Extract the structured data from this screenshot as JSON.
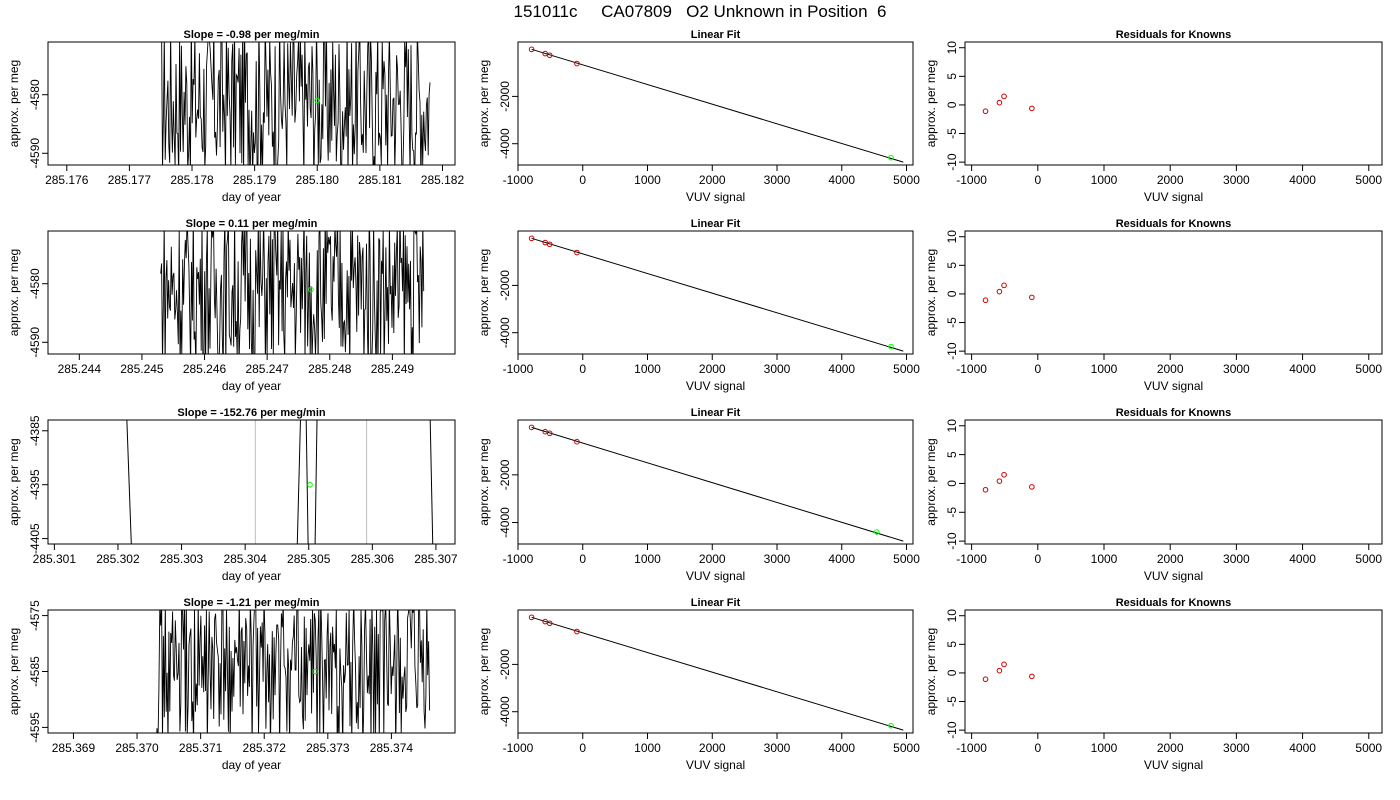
{
  "main_title": "151011c     CA07809   O2 Unknown in Position  6",
  "colors": {
    "trace": "#000000",
    "unknown_point": "#00ff00",
    "known_point": "#cc0000",
    "vline": "#bebebe",
    "fit_line": "#000000"
  },
  "chart_data": [
    {
      "type": "line",
      "title": "Slope =  -0.98  per meg/min",
      "xlabel": "day of year",
      "ylabel": "approx. per meg",
      "xlim": [
        285.1757,
        285.1822
      ],
      "ylim": [
        -4592,
        -4571
      ],
      "xticks": [
        285.176,
        285.177,
        285.178,
        285.179,
        285.18,
        285.181,
        285.182
      ],
      "xtick_labels": [
        "285.176",
        "285.177",
        "285.178",
        "285.179",
        "285.180",
        "285.181",
        "285.182"
      ],
      "yticks": [
        -4580,
        -4590
      ],
      "ytick_labels": [
        "-4580",
        "-4590"
      ],
      "trace": {
        "x_start": 285.1775,
        "x_end": 285.1818,
        "center": -4581,
        "amp": 14,
        "n": 300
      },
      "unknown_point": {
        "x": 285.18,
        "y": -4581
      }
    },
    {
      "type": "scatter",
      "title": "Linear Fit",
      "xlabel": "VUV signal",
      "ylabel": "approx. per meg",
      "xlim": [
        -1000,
        5100
      ],
      "ylim": [
        -4900,
        300
      ],
      "xticks": [
        -1000,
        0,
        1000,
        2000,
        3000,
        4000,
        5000
      ],
      "xtick_labels": [
        "-1000",
        "0",
        "1000",
        "2000",
        "3000",
        "4000",
        "5000"
      ],
      "yticks": [
        -2000,
        -4000
      ],
      "ytick_labels": [
        "-2000",
        "-4000"
      ],
      "known_points": [
        {
          "x": -790,
          "y": -10
        },
        {
          "x": -580,
          "y": -190
        },
        {
          "x": -510,
          "y": -260
        },
        {
          "x": -90,
          "y": -610
        }
      ],
      "unknown_point": {
        "x": 4760,
        "y": -4590
      },
      "fit_line": {
        "x": [
          -790,
          4950
        ],
        "y": [
          -10,
          -4780
        ]
      }
    },
    {
      "type": "scatter",
      "title": "Residuals for Knowns",
      "xlabel": "VUV signal",
      "ylabel": "approx. per meg",
      "xlim": [
        -1100,
        5200
      ],
      "ylim": [
        -10.5,
        11
      ],
      "xticks": [
        -1000,
        0,
        1000,
        2000,
        3000,
        4000,
        5000
      ],
      "xtick_labels": [
        "-1000",
        "0",
        "1000",
        "2000",
        "3000",
        "4000",
        "5000"
      ],
      "yticks": [
        10,
        5,
        0,
        -5,
        -10
      ],
      "ytick_labels": [
        "10",
        "5",
        "0",
        "-5",
        "-10"
      ],
      "known_points": [
        {
          "x": -790,
          "y": -1.1
        },
        {
          "x": -580,
          "y": 0.4
        },
        {
          "x": -510,
          "y": 1.5
        },
        {
          "x": -90,
          "y": -0.6
        }
      ]
    },
    {
      "type": "line",
      "title": "Slope =  0.11  per meg/min",
      "xlabel": "day of year",
      "ylabel": "approx. per meg",
      "xlim": [
        285.2435,
        285.25
      ],
      "ylim": [
        -4592,
        -4571
      ],
      "xticks": [
        285.244,
        285.245,
        285.246,
        285.247,
        285.248,
        285.249
      ],
      "xtick_labels": [
        "285.244",
        "285.245",
        "285.246",
        "285.247",
        "285.248",
        "285.249"
      ],
      "yticks": [
        -4580,
        -4590
      ],
      "ytick_labels": [
        "-4580",
        "-4590"
      ],
      "trace": {
        "x_start": 285.2453,
        "x_end": 285.2495,
        "center": -4581,
        "amp": 14,
        "n": 300
      },
      "unknown_point": {
        "x": 285.2477,
        "y": -4581
      }
    },
    {
      "type": "scatter",
      "title": "Linear Fit",
      "xlabel": "VUV signal",
      "ylabel": "approx. per meg",
      "xlim": [
        -1000,
        5100
      ],
      "ylim": [
        -4900,
        300
      ],
      "xticks": [
        -1000,
        0,
        1000,
        2000,
        3000,
        4000,
        5000
      ],
      "xtick_labels": [
        "-1000",
        "0",
        "1000",
        "2000",
        "3000",
        "4000",
        "5000"
      ],
      "yticks": [
        -2000,
        -4000
      ],
      "ytick_labels": [
        "-2000",
        "-4000"
      ],
      "known_points": [
        {
          "x": -790,
          "y": -10
        },
        {
          "x": -580,
          "y": -190
        },
        {
          "x": -510,
          "y": -260
        },
        {
          "x": -90,
          "y": -610
        }
      ],
      "unknown_point": {
        "x": 4760,
        "y": -4590
      },
      "fit_line": {
        "x": [
          -790,
          4950
        ],
        "y": [
          -10,
          -4780
        ]
      }
    },
    {
      "type": "scatter",
      "title": "Residuals for Knowns",
      "xlabel": "VUV signal",
      "ylabel": "approx. per meg",
      "xlim": [
        -1100,
        5200
      ],
      "ylim": [
        -10.5,
        11
      ],
      "xticks": [
        -1000,
        0,
        1000,
        2000,
        3000,
        4000,
        5000
      ],
      "xtick_labels": [
        "-1000",
        "0",
        "1000",
        "2000",
        "3000",
        "4000",
        "5000"
      ],
      "yticks": [
        10,
        5,
        0,
        -5,
        -10
      ],
      "ytick_labels": [
        "10",
        "5",
        "0",
        "-5",
        "-10"
      ],
      "known_points": [
        {
          "x": -790,
          "y": -1.1
        },
        {
          "x": -580,
          "y": 0.4
        },
        {
          "x": -510,
          "y": 1.5
        },
        {
          "x": -90,
          "y": -0.6
        }
      ]
    },
    {
      "type": "line",
      "title": "Slope =  -152.76  per meg/min",
      "xlabel": "day of year",
      "ylabel": "approx. per meg",
      "xlim": [
        285.3009,
        285.3073
      ],
      "ylim": [
        -4406,
        -4383
      ],
      "xticks": [
        285.301,
        285.302,
        285.303,
        285.304,
        285.305,
        285.306,
        285.307
      ],
      "xtick_labels": [
        "285.301",
        "285.302",
        "285.303",
        "285.304",
        "285.305",
        "285.306",
        "285.307"
      ],
      "yticks": [
        -4385,
        -4395,
        -4405
      ],
      "ytick_labels": [
        "-4385",
        "-4395",
        "-4405"
      ],
      "gray_vlines": [
        285.30416,
        285.30591
      ],
      "segments": [
        {
          "x": [
            285.30214,
            285.30221
          ],
          "y": [
            -4383,
            -4406
          ]
        },
        {
          "x": [
            285.30482,
            285.30487
          ],
          "y": [
            -4406,
            -4383
          ]
        },
        {
          "x": [
            285.30496,
            285.30499
          ],
          "y": [
            -4383,
            -4406
          ]
        },
        {
          "x": [
            285.3051,
            285.30513
          ],
          "y": [
            -4406,
            -4383
          ]
        },
        {
          "x": [
            285.30691,
            285.30695
          ],
          "y": [
            -4383,
            -4406
          ]
        }
      ],
      "unknown_point": {
        "x": 285.30502,
        "y": -4395
      }
    },
    {
      "type": "scatter",
      "title": "Linear Fit",
      "xlabel": "VUV signal",
      "ylabel": "approx. per meg",
      "xlim": [
        -1000,
        5100
      ],
      "ylim": [
        -4900,
        300
      ],
      "xticks": [
        -1000,
        0,
        1000,
        2000,
        3000,
        4000,
        5000
      ],
      "xtick_labels": [
        "-1000",
        "0",
        "1000",
        "2000",
        "3000",
        "4000",
        "5000"
      ],
      "yticks": [
        -2000,
        -4000
      ],
      "ytick_labels": [
        "-2000",
        "-4000"
      ],
      "known_points": [
        {
          "x": -790,
          "y": -10
        },
        {
          "x": -580,
          "y": -190
        },
        {
          "x": -510,
          "y": -260
        },
        {
          "x": -90,
          "y": -610
        }
      ],
      "unknown_point": {
        "x": 4540,
        "y": -4400
      },
      "fit_line": {
        "x": [
          -790,
          4950
        ],
        "y": [
          -10,
          -4780
        ]
      }
    },
    {
      "type": "scatter",
      "title": "Residuals for Knowns",
      "xlabel": "VUV signal",
      "ylabel": "approx. per meg",
      "xlim": [
        -1100,
        5200
      ],
      "ylim": [
        -10.5,
        11
      ],
      "xticks": [
        -1000,
        0,
        1000,
        2000,
        3000,
        4000,
        5000
      ],
      "xtick_labels": [
        "-1000",
        "0",
        "1000",
        "2000",
        "3000",
        "4000",
        "5000"
      ],
      "yticks": [
        10,
        5,
        0,
        -5,
        -10
      ],
      "ytick_labels": [
        "10",
        "5",
        "0",
        "-5",
        "-10"
      ],
      "known_points": [
        {
          "x": -790,
          "y": -1.1
        },
        {
          "x": -580,
          "y": 0.4
        },
        {
          "x": -510,
          "y": 1.5
        },
        {
          "x": -90,
          "y": -0.6
        }
      ]
    },
    {
      "type": "line",
      "title": "Slope =  -1.21  per meg/min",
      "xlabel": "day of year",
      "ylabel": "approx. per meg",
      "xlim": [
        285.3686,
        285.375
      ],
      "ylim": [
        -4596,
        -4574
      ],
      "xticks": [
        285.369,
        285.37,
        285.371,
        285.372,
        285.373,
        285.374
      ],
      "xtick_labels": [
        "285.369",
        "285.370",
        "285.371",
        "285.372",
        "285.373",
        "285.374"
      ],
      "yticks": [
        -4575,
        -4585,
        -4595
      ],
      "ytick_labels": [
        "-4575",
        "-4585",
        "-4595"
      ],
      "trace": {
        "x_start": 285.3703,
        "x_end": 285.3746,
        "center": -4585,
        "amp": 14,
        "n": 300
      },
      "unknown_point": {
        "x": 285.3728,
        "y": -4585
      }
    },
    {
      "type": "scatter",
      "title": "Linear Fit",
      "xlabel": "VUV signal",
      "ylabel": "approx. per meg",
      "xlim": [
        -1000,
        5100
      ],
      "ylim": [
        -4900,
        300
      ],
      "xticks": [
        -1000,
        0,
        1000,
        2000,
        3000,
        4000,
        5000
      ],
      "xtick_labels": [
        "-1000",
        "0",
        "1000",
        "2000",
        "3000",
        "4000",
        "5000"
      ],
      "yticks": [
        -2000,
        -4000
      ],
      "ytick_labels": [
        "-2000",
        "-4000"
      ],
      "known_points": [
        {
          "x": -790,
          "y": -10
        },
        {
          "x": -580,
          "y": -190
        },
        {
          "x": -510,
          "y": -260
        },
        {
          "x": -90,
          "y": -610
        }
      ],
      "unknown_point": {
        "x": 4760,
        "y": -4590
      },
      "fit_line": {
        "x": [
          -790,
          4950
        ],
        "y": [
          -10,
          -4780
        ]
      }
    },
    {
      "type": "scatter",
      "title": "Residuals for Knowns",
      "xlabel": "VUV signal",
      "ylabel": "approx. per meg",
      "xlim": [
        -1100,
        5200
      ],
      "ylim": [
        -10.5,
        11
      ],
      "xticks": [
        -1000,
        0,
        1000,
        2000,
        3000,
        4000,
        5000
      ],
      "xtick_labels": [
        "-1000",
        "0",
        "1000",
        "2000",
        "3000",
        "4000",
        "5000"
      ],
      "yticks": [
        10,
        5,
        0,
        -5,
        -10
      ],
      "ytick_labels": [
        "10",
        "5",
        "0",
        "-5",
        "-10"
      ],
      "known_points": [
        {
          "x": -790,
          "y": -1.1
        },
        {
          "x": -580,
          "y": 0.4
        },
        {
          "x": -510,
          "y": 1.5
        },
        {
          "x": -90,
          "y": -0.6
        }
      ]
    }
  ]
}
